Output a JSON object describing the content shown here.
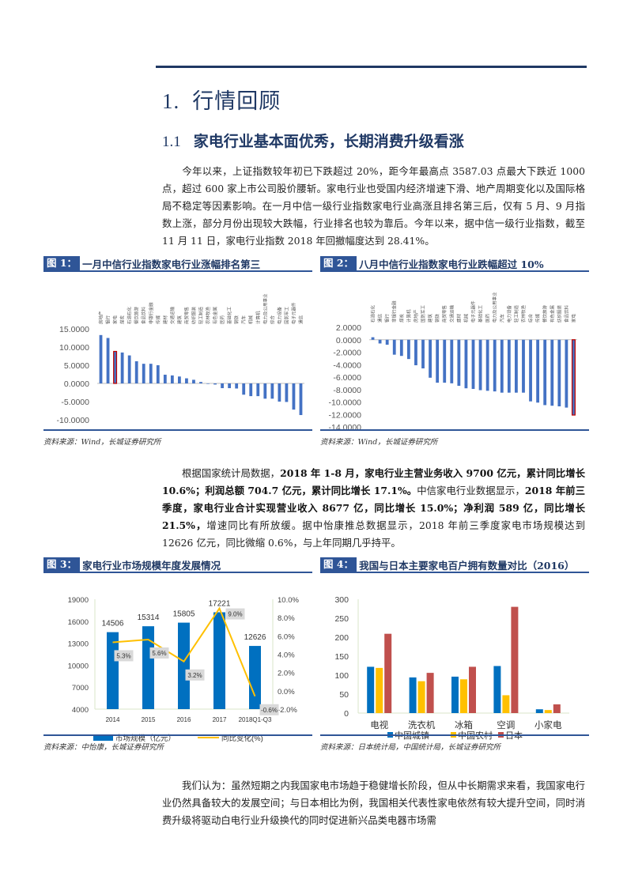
{
  "section": {
    "number": "1.",
    "title": "行情回顾"
  },
  "subsection": {
    "number": "1.1",
    "title": "家电行业基本面优秀，长期消费升级看涨"
  },
  "paragraphs": {
    "p1": "今年以来，上证指数较年初已下跌超过 20%，距今年最高点 3587.03 点最大下跌近 1000 点，超过 600 家上市公司股价腰斩。家电行业也受国内经济增速下滑、地产周期变化以及国际格局不稳定等因素影响。在一月中信一级行业指数家电行业高涨且排名第三后，仅有 5 月、9 月指数上涨，部分月份出现较大跌幅，行业排名也较为靠后。今年以来，据中信一级行业指数，截至 11 月 11 日，家电行业指数 2018 年回撤幅度达到 28.41%。",
    "p2_a": "根据国家统计局数据，",
    "p2_b": "2018 年 1-8 月，家电行业主营业务收入 9700 亿元，累计同比增长 10.6%；利润总额 704.7 亿元，累计同比增长 17.1%。",
    "p2_c": "中信家电行业数据显示，",
    "p2_d": "2018 年前三季度，家电行业合计实现营业收入 8677 亿，同比增长 15.0%；净利润 589 亿，同比增长 21.5%，",
    "p2_e": "增速同比有所放缓。据中怡康推总数据显示，2018 年前三季度家电市场规模达到 12626 亿元，同比微缩 0.6%，与上年同期几乎持平。",
    "p3": "我们认为：虽然短期之内我国家电市场趋于稳健增长阶段，但从中长期需求来看，我国家电行业仍然具备较大的发展空间；与日本相比为例，我国相关代表性家电依然有较大提升空间，同时消费升级将驱动白电行业升级换代的同时促进新兴品类电器市场需"
  },
  "figures": {
    "f1": {
      "tag": "图 1：",
      "title": "一月中信行业指数家电行业涨幅排名第三",
      "source": "资料来源：Wind，长城证券研究所"
    },
    "f2": {
      "tag": "图 2：",
      "title": "八月中信行业指数家电行业跌幅超过 10%",
      "source": "资料来源：Wind，长城证券研究所"
    },
    "f3": {
      "tag": "图 3：",
      "title": "家电行业市场规模年度发展情况",
      "source": "资料来源：中怡康，长城证券研究所"
    },
    "f4": {
      "tag": "图 4：",
      "title": "我国与日本主要家电百户拥有数量对比（2016）",
      "source": "资料来源：日本统计局，中国统计局，长城证券研究所"
    }
  },
  "colors": {
    "bar_blue": "#4472c4",
    "highlight_red": "#c00000",
    "accent_navy": "#1f3864",
    "line_yellow": "#ffc000",
    "japan_red": "#c0504d",
    "china_blue": "#0070c0"
  },
  "chart_data": [
    {
      "type": "bar",
      "title": "一月中信行业指数家电行业涨幅排名第三",
      "categories": [
        "房地产",
        "银行",
        "家电",
        "煤炭",
        "石油石化",
        "餐饮旅游",
        "食品饮料",
        "非银行金融",
        "传媒",
        "建材",
        "交通运输",
        "建筑",
        "商贸零售",
        "纺织服装",
        "轻工制造",
        "农林牧渔",
        "有色金属",
        "医药",
        "基础化工",
        "钢铁",
        "汽车",
        "机械",
        "计算机",
        "电力及公用事业",
        "综合",
        "电力设备",
        "国防军工",
        "电子元器件",
        "通信"
      ],
      "values": [
        13.3,
        12.5,
        8.8,
        8.5,
        7.7,
        6.1,
        5.4,
        5.4,
        5.0,
        2.4,
        2.2,
        1.9,
        1.4,
        1.0,
        0.4,
        0.0,
        -0.3,
        -1.3,
        -1.3,
        -1.4,
        -3.1,
        -3.5,
        -3.5,
        -4.2,
        -4.2,
        -5.0,
        -5.1,
        -7.2,
        -8.7
      ],
      "highlight": "家电",
      "ylim": [
        -10,
        15
      ],
      "yticks": [
        "15.0000",
        "10.0000",
        "5.0000",
        "0.0000",
        "-5.0000",
        "-10.0000"
      ]
    },
    {
      "type": "bar",
      "title": "八月中信行业指数家电行业跌幅超过 10%",
      "categories": [
        "石油石化",
        "通信",
        "银行",
        "非银行金融",
        "煤炭",
        "计算机",
        "房地产",
        "国防军工",
        "建筑",
        "钢铁",
        "商贸零售",
        "交通运输",
        "建材",
        "机械",
        "电子元器件",
        "基础化工",
        "医药",
        "电力及公用事业",
        "汽车",
        "电力设备",
        "轻工制造",
        "农林牧渔",
        "综合",
        "传媒",
        "餐饮旅游",
        "有色金属",
        "纺织服装",
        "食品饮料",
        "家电"
      ],
      "values": [
        0.4,
        -0.6,
        -0.8,
        -2.4,
        -2.6,
        -3.1,
        -4.1,
        -4.6,
        -6.1,
        -6.9,
        -6.9,
        -7.0,
        -7.4,
        -7.8,
        -7.9,
        -8.1,
        -8.2,
        -8.3,
        -8.5,
        -8.5,
        -8.5,
        -8.5,
        -9.9,
        -10.1,
        -10.5,
        -10.6,
        -10.7,
        -10.9,
        -12.1
      ],
      "highlight": "家电",
      "ylim": [
        -14,
        2
      ],
      "yticks": [
        "2.0000",
        "0.0000",
        "-2.0000",
        "-4.0000",
        "-6.0000",
        "-8.0000",
        "-10.0000",
        "-12.0000",
        "-14.0000"
      ]
    },
    {
      "type": "bar+line",
      "title": "家电行业市场规模年度发展情况",
      "categories": [
        "2014",
        "2015",
        "2016",
        "2017",
        "2018Q1-Q3"
      ],
      "series": [
        {
          "name": "市场规模（亿元）",
          "type": "bar",
          "axis": "left",
          "values": [
            14506,
            15314,
            15805,
            17221,
            12626
          ]
        },
        {
          "name": "同比变化(%)",
          "type": "line",
          "axis": "right",
          "values": [
            5.3,
            5.6,
            3.2,
            9.0,
            -0.6
          ],
          "labels": [
            "5.3%",
            "5.6%",
            "3.2%",
            "9.0%",
            "-0.6%"
          ]
        }
      ],
      "ylim": [
        4000,
        19000
      ],
      "yticks": [
        "19000",
        "16000",
        "13000",
        "10000",
        "7000",
        "4000"
      ],
      "y2lim": [
        -2,
        10
      ],
      "y2ticks": [
        "10.0%",
        "8.0%",
        "6.0%",
        "4.0%",
        "2.0%",
        "0.0%",
        "-2.0%"
      ],
      "legend": [
        "市场规模（亿元）",
        "同比变化(%)"
      ]
    },
    {
      "type": "bar",
      "title": "我国与日本主要家电百户拥有数量对比（2016）",
      "categories": [
        "电视",
        "洗衣机",
        "冰箱",
        "空调",
        "小家电"
      ],
      "series": [
        {
          "name": "中国城镇",
          "values": [
            122,
            94,
            96,
            124,
            10
          ]
        },
        {
          "name": "中国农村",
          "values": [
            119,
            84,
            89,
            47,
            8
          ]
        },
        {
          "name": "日本",
          "values": [
            209,
            106,
            122,
            280,
            23
          ]
        }
      ],
      "ylim": [
        0,
        300
      ],
      "yticks": [
        "300",
        "250",
        "200",
        "150",
        "100",
        "50",
        "0"
      ],
      "legend": [
        "中国城镇",
        "中国农村",
        "日本"
      ]
    }
  ]
}
